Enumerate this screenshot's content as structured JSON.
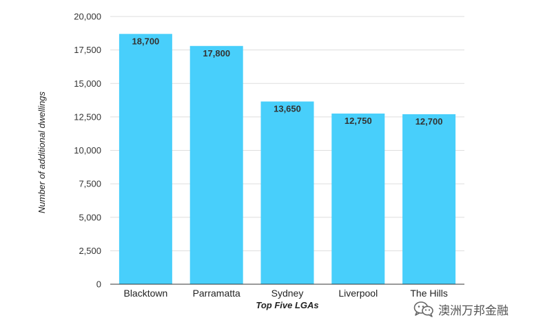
{
  "chart_data": {
    "type": "bar",
    "categories": [
      "Blacktown",
      "Parramatta",
      "Sydney",
      "Liverpool",
      "The Hills"
    ],
    "values": [
      18700,
      17800,
      13650,
      12750,
      12700
    ],
    "data_labels": [
      "18,700",
      "17,800",
      "13,650",
      "12,750",
      "12,700"
    ],
    "xlabel": "Top Five LGAs",
    "ylabel": "Number of additional dwellings",
    "ylim": [
      0,
      20000
    ],
    "yticks": [
      0,
      2500,
      5000,
      7500,
      10000,
      12500,
      15000,
      17500,
      20000
    ],
    "ytick_labels": [
      "0",
      "2,500",
      "5,000",
      "7,500",
      "10,000",
      "12,500",
      "15,000",
      "17,500",
      "20,000"
    ],
    "grid": true,
    "legend": "none",
    "bar_color": "#48CFFB",
    "gridline_color": "#dddddd"
  },
  "watermark": {
    "text": "澳洲万邦金融",
    "icon": "wechat-icon"
  }
}
